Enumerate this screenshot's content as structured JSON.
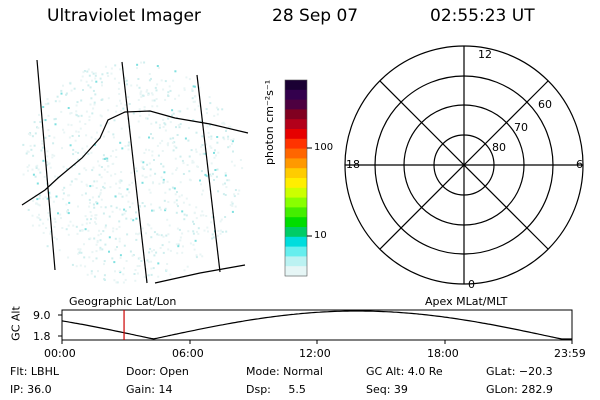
{
  "header": {
    "instrument": "Ultraviolet Imager",
    "date": "28 Sep 07",
    "time": "02:55:23 UT"
  },
  "labels": {
    "geographic": "Geographic Lat/Lon",
    "apex": "Apex MLat/MLT",
    "gc_alt_axis": "GC Alt",
    "colorbar_unit": "photon cm⁻²s⁻¹"
  },
  "colorbar": {
    "ticks": [
      "100",
      "10"
    ],
    "colors": [
      "#1a0033",
      "#33004d",
      "#4d0040",
      "#800020",
      "#b3001a",
      "#e60000",
      "#ff3300",
      "#ff6600",
      "#ff9900",
      "#ffcc00",
      "#ffee00",
      "#ccff00",
      "#88ff00",
      "#44ee00",
      "#00dd00",
      "#00cc66",
      "#00dddd",
      "#66eeee",
      "#bbf2f2",
      "#e6f6f6"
    ]
  },
  "polar": {
    "mlt_labels": [
      "12",
      "18",
      "6",
      "0"
    ],
    "mlat_labels": [
      "60",
      "70",
      "80"
    ]
  },
  "gc_alt_plot": {
    "ymax": "9.0",
    "ymin": "1.8",
    "x_ticks": [
      "00:00",
      "06:00",
      "12:00",
      "18:00",
      "23:59"
    ],
    "current_time_hours": 2.92,
    "line_color": "#cc0000"
  },
  "footer": {
    "filter": "Flt: LBHL",
    "ip": "IP: 36.0",
    "door": "Door: Open",
    "gain": "Gain: 14",
    "mode": "Mode: Normal",
    "dsp": "Dsp:     5.5",
    "gc_alt": "GC Alt: 4.0 Re",
    "seq": "Seq: 39",
    "glat": "GLat: −20.3",
    "glon": "GLon: 282.9"
  }
}
